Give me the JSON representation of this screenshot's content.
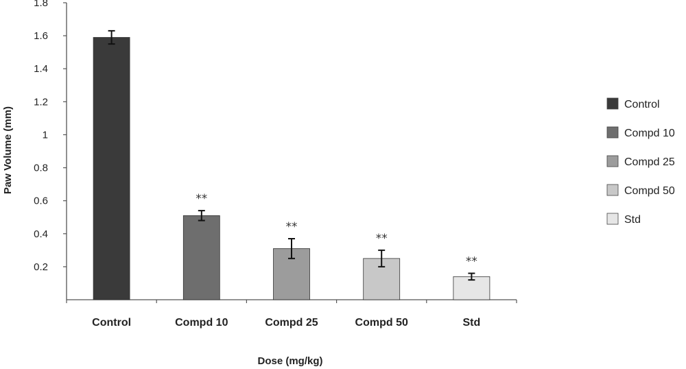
{
  "chart_data": {
    "type": "bar",
    "categories": [
      "Control",
      "Compd 10",
      "Compd 25",
      "Compd 50",
      "Std"
    ],
    "values": [
      1.59,
      0.51,
      0.31,
      0.25,
      0.14
    ],
    "errors": [
      0.04,
      0.03,
      0.06,
      0.05,
      0.02
    ],
    "significance": [
      "",
      "**",
      "**",
      "**",
      "**"
    ],
    "colors": [
      "#3a3a3a",
      "#6e6e6e",
      "#9c9c9c",
      "#c8c8c8",
      "#e6e6e6"
    ],
    "xlabel": "Dose (mg/kg)",
    "ylabel": "Paw Volume (mm)",
    "ylim": [
      0,
      1.8
    ],
    "yticks": [
      0.2,
      0.4,
      0.6,
      0.8,
      1,
      1.2,
      1.4,
      1.6,
      1.8
    ],
    "ytick_labels": [
      "0.2",
      "0.4",
      "0.6",
      "0.8",
      "1",
      "1.2",
      "1.4",
      "1.6",
      "1.8"
    ],
    "legend": [
      "Control",
      "Compd 10",
      "Compd 25",
      "Compd 50",
      "Std"
    ],
    "legend_position": "right",
    "grid": false
  }
}
